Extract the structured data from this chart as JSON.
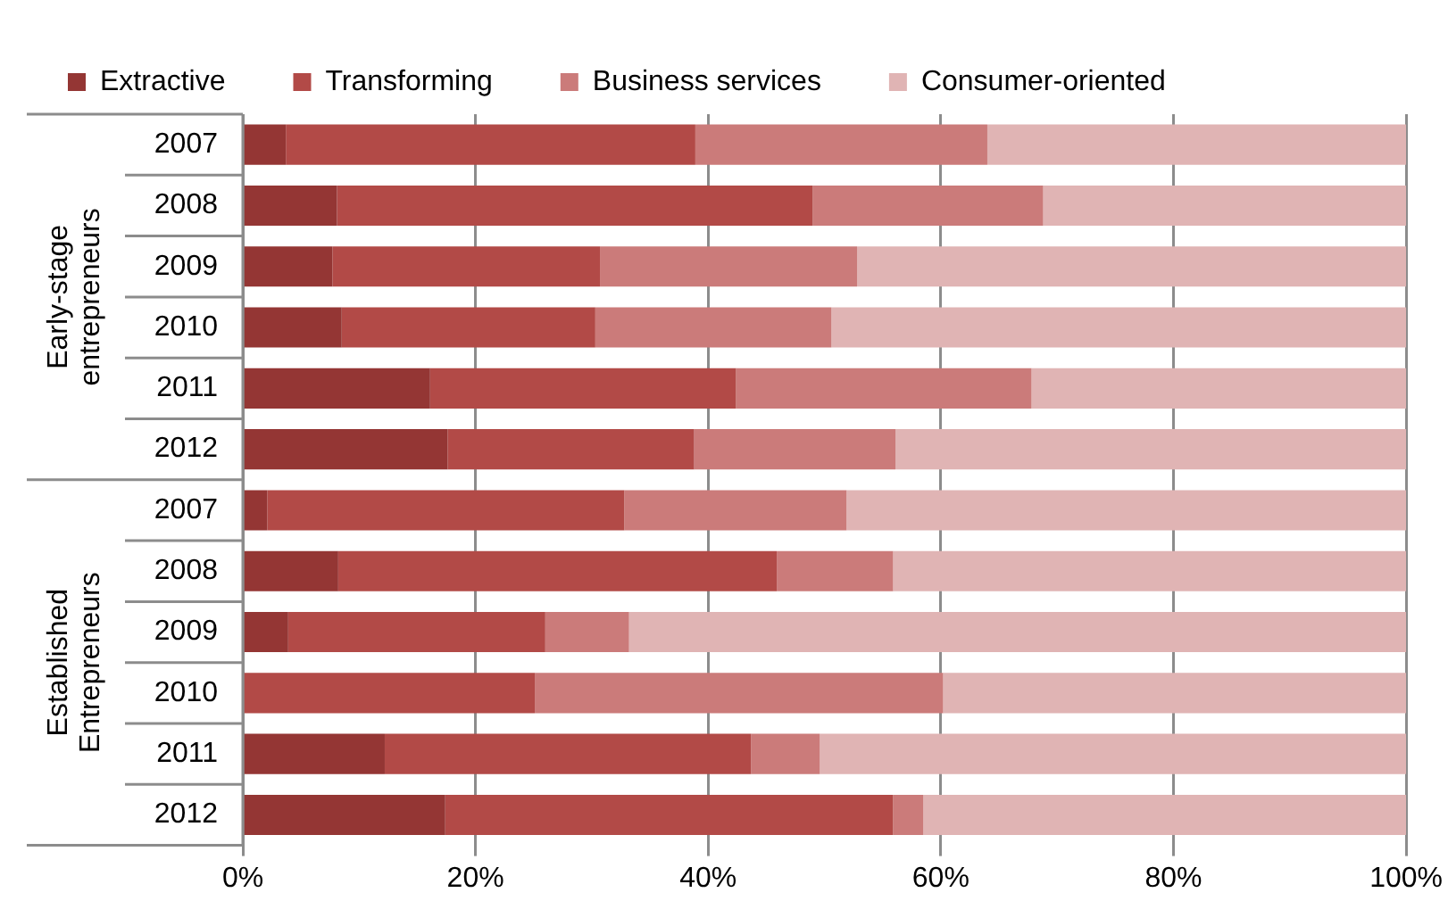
{
  "chart_data": {
    "type": "bar",
    "orientation": "horizontal",
    "stacked": true,
    "categories": [
      "2007",
      "2008",
      "2009",
      "2010",
      "2011",
      "2012",
      "2007",
      "2008",
      "2009",
      "2010",
      "2011",
      "2012"
    ],
    "annotations": [
      "Early-stage entrepreneurs",
      "Established Entrepreneurs"
    ],
    "series": [
      {
        "name": "Extractive",
        "color": "#943634",
        "values": [
          3.7,
          8.1,
          7.7,
          8.5,
          16.1,
          17.6,
          2.1,
          8.2,
          3.9,
          0,
          12.2,
          17.4
        ]
      },
      {
        "name": "Transforming",
        "color": "#b24a47",
        "values": [
          35.2,
          40.9,
          23.0,
          21.8,
          26.3,
          21.2,
          30.7,
          37.7,
          22.1,
          25.1,
          31.5,
          38.5
        ]
      },
      {
        "name": "Business services",
        "color": "#cb7b7a",
        "values": [
          25.1,
          19.8,
          22.1,
          20.3,
          25.4,
          17.3,
          19.1,
          10.0,
          7.2,
          35.1,
          5.9,
          2.6
        ]
      },
      {
        "name": "Consumer-oriented",
        "color": "#e0b4b4",
        "values": [
          36.0,
          31.2,
          47.2,
          49.4,
          32.2,
          43.9,
          48.1,
          44.1,
          66.8,
          39.8,
          50.4,
          41.5
        ]
      }
    ],
    "xlim": [
      0,
      100
    ],
    "xticks": [
      {
        "value": 0,
        "label": "0%"
      },
      {
        "value": 20,
        "label": "20%"
      },
      {
        "value": 40,
        "label": "40%"
      },
      {
        "value": 60,
        "label": "60%"
      },
      {
        "value": 80,
        "label": "80%"
      },
      {
        "value": 100,
        "label": "100%"
      }
    ],
    "grid": "x",
    "legend": "top left"
  }
}
